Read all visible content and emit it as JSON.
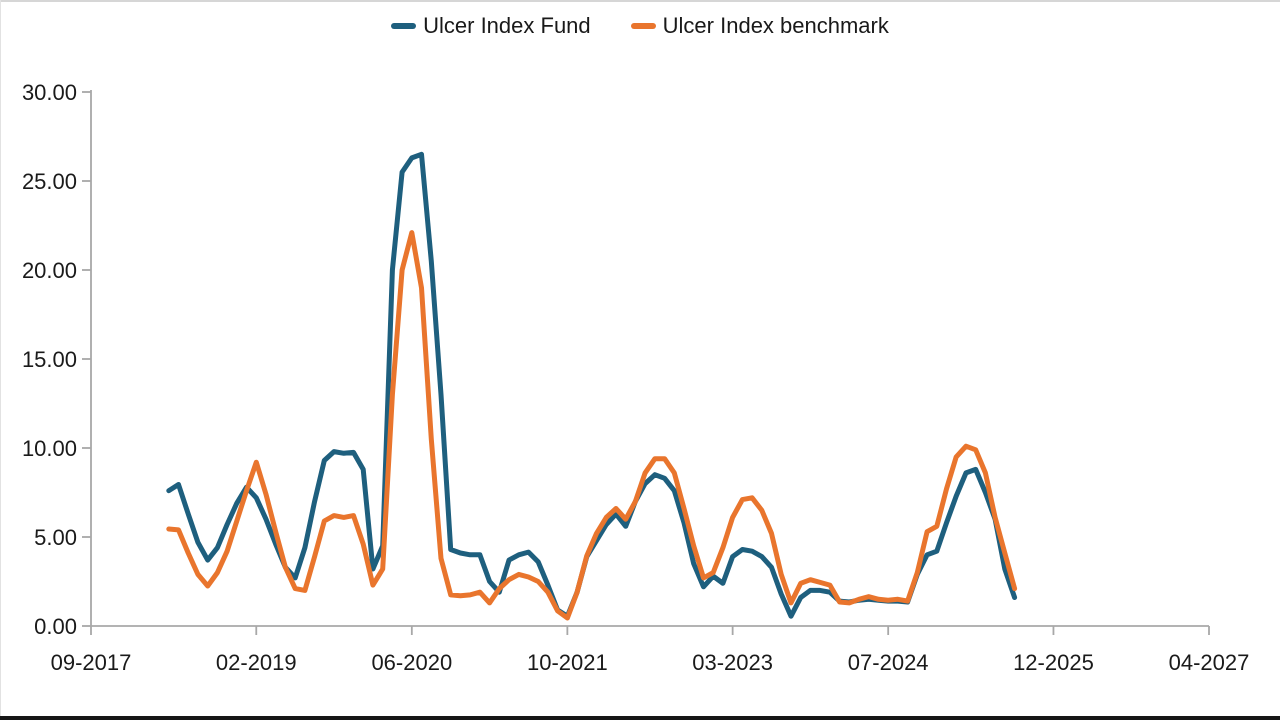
{
  "page": {
    "background": "#ffffff",
    "top_border_color": "#d6d6d6",
    "left_border_color": "#e2e2e2",
    "bottom_bar_color": "#161616"
  },
  "legend": {
    "items": [
      {
        "label": "Ulcer Index Fund",
        "color": "#1E5F7E"
      },
      {
        "label": "Ulcer Index benchmark",
        "color": "#E9752D"
      }
    ]
  },
  "chart_data": {
    "type": "line",
    "title": "",
    "xlabel": "",
    "ylabel": "",
    "grid": false,
    "legend_position": "top",
    "axis_color": "#a8a8a8",
    "label_color": "#1a1a1a",
    "ylim": [
      0,
      30
    ],
    "y_ticks": [
      "0.00",
      "5.00",
      "10.00",
      "15.00",
      "20.00",
      "25.00",
      "30.00"
    ],
    "x_ticks": [
      "09-2017",
      "02-2019",
      "06-2020",
      "10-2021",
      "03-2023",
      "07-2024",
      "12-2025",
      "04-2027"
    ],
    "x_range": [
      "09-2017",
      "04-2027"
    ],
    "x": [
      "05-2018",
      "06-2018",
      "07-2018",
      "08-2018",
      "09-2018",
      "10-2018",
      "11-2018",
      "12-2018",
      "01-2019",
      "02-2019",
      "03-2019",
      "04-2019",
      "05-2019",
      "06-2019",
      "07-2019",
      "08-2019",
      "09-2019",
      "10-2019",
      "11-2019",
      "12-2019",
      "01-2020",
      "02-2020",
      "03-2020",
      "04-2020",
      "05-2020",
      "06-2020",
      "07-2020",
      "08-2020",
      "09-2020",
      "10-2020",
      "11-2020",
      "12-2020",
      "01-2021",
      "02-2021",
      "03-2021",
      "04-2021",
      "05-2021",
      "06-2021",
      "07-2021",
      "08-2021",
      "09-2021",
      "10-2021",
      "11-2021",
      "12-2021",
      "01-2022",
      "02-2022",
      "03-2022",
      "04-2022",
      "05-2022",
      "06-2022",
      "07-2022",
      "08-2022",
      "09-2022",
      "10-2022",
      "11-2022",
      "12-2022",
      "01-2023",
      "02-2023",
      "03-2023",
      "04-2023",
      "05-2023",
      "06-2023",
      "07-2023",
      "08-2023",
      "09-2023",
      "10-2023",
      "11-2023",
      "12-2023",
      "01-2024",
      "02-2024",
      "03-2024",
      "04-2024",
      "05-2024",
      "06-2024",
      "07-2024",
      "08-2024",
      "09-2024",
      "10-2024",
      "11-2024",
      "12-2024",
      "01-2025",
      "02-2025",
      "03-2025",
      "04-2025",
      "05-2025",
      "06-2025",
      "07-2025",
      "08-2025"
    ],
    "series": [
      {
        "name": "Ulcer Index Fund",
        "color": "#1E5F7E",
        "values": [
          7.6,
          7.95,
          6.3,
          4.7,
          3.7,
          4.4,
          5.7,
          6.9,
          7.8,
          7.2,
          6.0,
          4.6,
          3.3,
          2.7,
          4.4,
          7.0,
          9.3,
          9.8,
          9.7,
          9.75,
          8.8,
          3.2,
          4.5,
          20.0,
          25.5,
          26.3,
          26.5,
          20.5,
          13.0,
          4.3,
          4.1,
          4.0,
          4.0,
          2.5,
          1.9,
          3.7,
          4.0,
          4.15,
          3.6,
          2.3,
          0.9,
          0.55,
          1.9,
          3.9,
          4.8,
          5.7,
          6.3,
          5.6,
          7.0,
          8.0,
          8.5,
          8.3,
          7.6,
          5.8,
          3.5,
          2.2,
          2.8,
          2.4,
          3.9,
          4.3,
          4.2,
          3.9,
          3.3,
          1.8,
          0.55,
          1.6,
          2.0,
          2.0,
          1.9,
          1.4,
          1.35,
          1.45,
          1.5,
          1.45,
          1.4,
          1.4,
          1.35,
          2.9,
          4.0,
          4.2,
          5.8,
          7.3,
          8.6,
          8.8,
          7.5,
          6.0,
          3.2,
          1.6
        ]
      },
      {
        "name": "Ulcer Index benchmark",
        "color": "#E9752D",
        "values": [
          5.45,
          5.4,
          4.1,
          2.9,
          2.25,
          3.0,
          4.2,
          5.9,
          7.6,
          9.2,
          7.4,
          5.3,
          3.3,
          2.1,
          2.0,
          3.9,
          5.9,
          6.2,
          6.1,
          6.2,
          4.6,
          2.3,
          3.2,
          13.0,
          20.0,
          22.1,
          19.0,
          10.5,
          3.8,
          1.75,
          1.7,
          1.75,
          1.9,
          1.3,
          2.1,
          2.6,
          2.9,
          2.75,
          2.5,
          1.9,
          0.85,
          0.45,
          1.9,
          3.95,
          5.2,
          6.1,
          6.6,
          6.0,
          7.0,
          8.6,
          9.4,
          9.4,
          8.6,
          6.6,
          4.5,
          2.7,
          3.0,
          4.4,
          6.1,
          7.1,
          7.2,
          6.5,
          5.2,
          2.9,
          1.3,
          2.4,
          2.6,
          2.45,
          2.3,
          1.35,
          1.3,
          1.5,
          1.65,
          1.5,
          1.45,
          1.5,
          1.4,
          3.0,
          5.3,
          5.6,
          7.7,
          9.5,
          10.1,
          9.9,
          8.6,
          6.1,
          4.1,
          2.1
        ]
      }
    ]
  }
}
